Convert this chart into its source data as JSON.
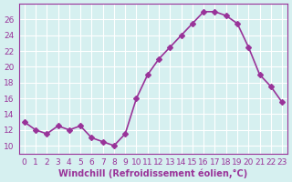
{
  "x": [
    0,
    1,
    2,
    3,
    4,
    5,
    6,
    7,
    8,
    9,
    10,
    11,
    12,
    13,
    14,
    15,
    16,
    17,
    18,
    19,
    20,
    21,
    22,
    23
  ],
  "y": [
    13,
    12,
    11.5,
    12.5,
    12,
    12.5,
    11,
    10.5,
    10,
    11.5,
    16,
    19,
    21,
    22.5,
    24,
    25.5,
    27,
    27,
    26.5,
    25.5,
    22.5,
    19,
    17.5,
    15.5
  ],
  "line_color": "#993399",
  "marker": "D",
  "marker_size": 3,
  "bg_color": "#d6f0f0",
  "grid_color": "#ffffff",
  "xlabel": "Windchill (Refroidissement éolien,°C)",
  "ylim": [
    9,
    28
  ],
  "xlim": [
    -0.5,
    23.5
  ],
  "yticks": [
    10,
    12,
    14,
    16,
    18,
    20,
    22,
    24,
    26
  ],
  "xticks": [
    0,
    1,
    2,
    3,
    4,
    5,
    6,
    7,
    8,
    9,
    10,
    11,
    12,
    13,
    14,
    15,
    16,
    17,
    18,
    19,
    20,
    21,
    22,
    23
  ],
  "xlabel_fontsize": 7,
  "tick_fontsize": 6.5,
  "line_width": 1.2
}
